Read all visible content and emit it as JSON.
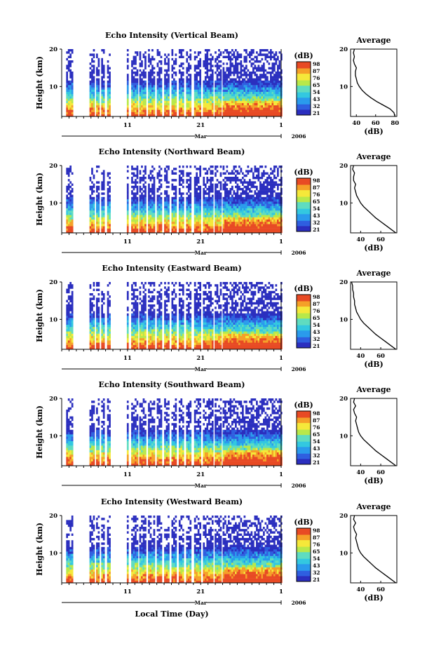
{
  "figure": {
    "xlabel": "Local Time (Day)",
    "month_label": "Mar",
    "year_label": "2006",
    "date_ticks": [
      "11",
      "21",
      "1"
    ],
    "colorbar_unit": "(dB)",
    "colorbar_labels": [
      "98",
      "87",
      "76",
      "65",
      "54",
      "43",
      "32",
      "21"
    ],
    "avg_title": "Average",
    "avg_xlabel": "(dB)"
  },
  "chart_data": [
    {
      "type": "heatmap",
      "title": "Echo Intensity (Vertical Beam)",
      "ylabel": "Height (km)",
      "yticks": [
        10,
        20
      ],
      "ylim": [
        2,
        20
      ],
      "x_ticks": [
        "11",
        "21",
        "1"
      ],
      "x_range": [
        "Mar 2",
        "Apr 1"
      ],
      "color_scale_dB": [
        21,
        32,
        43,
        54,
        65,
        76,
        87,
        98
      ],
      "average_profile": {
        "xticks": [
          40,
          60,
          80
        ],
        "xlim": [
          34,
          82
        ],
        "height_km": [
          2,
          3,
          4,
          5,
          6,
          7,
          8,
          9,
          10,
          11,
          12,
          13,
          14,
          15,
          16,
          17,
          18,
          19,
          20
        ],
        "avg_dB": [
          80,
          79,
          75,
          68,
          61,
          55,
          50,
          46,
          43,
          41,
          40,
          39,
          39,
          40,
          38,
          37,
          38,
          37,
          38
        ]
      }
    },
    {
      "type": "heatmap",
      "title": "Echo Intensity (Northward Beam)",
      "ylabel": "Height (km)",
      "yticks": [
        10,
        20
      ],
      "ylim": [
        2,
        20
      ],
      "x_ticks": [
        "11",
        "21",
        "1"
      ],
      "x_range": [
        "Mar 2",
        "Apr 1"
      ],
      "color_scale_dB": [
        21,
        32,
        43,
        54,
        65,
        76,
        87,
        98
      ],
      "average_profile": {
        "xticks": [
          40,
          60
        ],
        "xlim": [
          30,
          76
        ],
        "height_km": [
          2,
          3,
          4,
          5,
          6,
          7,
          8,
          9,
          10,
          11,
          12,
          13,
          14,
          15,
          16,
          17,
          18,
          19,
          20
        ],
        "avg_dB": [
          75,
          70,
          65,
          60,
          55,
          51,
          47,
          43,
          40,
          38,
          36,
          35,
          34,
          35,
          33,
          33,
          34,
          32,
          33
        ]
      }
    },
    {
      "type": "heatmap",
      "title": "Echo Intensity (Eastward Beam)",
      "ylabel": "Height (km)",
      "yticks": [
        10,
        20
      ],
      "ylim": [
        2,
        20
      ],
      "x_ticks": [
        "11",
        "21",
        "1"
      ],
      "x_range": [
        "Mar 2",
        "Apr 1"
      ],
      "color_scale_dB": [
        21,
        32,
        43,
        54,
        65,
        76,
        87,
        98
      ],
      "average_profile": {
        "xticks": [
          40,
          60
        ],
        "xlim": [
          30,
          76
        ],
        "height_km": [
          2,
          3,
          4,
          5,
          6,
          7,
          8,
          9,
          10,
          11,
          12,
          13,
          14,
          15,
          16,
          17,
          18,
          19,
          20
        ],
        "avg_dB": [
          75,
          70,
          65,
          60,
          55,
          51,
          47,
          43,
          40,
          38,
          36,
          35,
          34,
          34,
          33,
          33,
          32,
          32,
          31
        ]
      }
    },
    {
      "type": "heatmap",
      "title": "Echo Intensity (Southward Beam)",
      "ylabel": "Height (km)",
      "yticks": [
        10,
        20
      ],
      "ylim": [
        2,
        20
      ],
      "x_ticks": [
        "11",
        "21",
        "1"
      ],
      "x_range": [
        "Mar 2",
        "Apr 1"
      ],
      "color_scale_dB": [
        21,
        32,
        43,
        54,
        65,
        76,
        87,
        98
      ],
      "average_profile": {
        "xticks": [
          40,
          60
        ],
        "xlim": [
          30,
          76
        ],
        "height_km": [
          2,
          3,
          4,
          5,
          6,
          7,
          8,
          9,
          10,
          11,
          12,
          13,
          14,
          15,
          16,
          17,
          18,
          19,
          20
        ],
        "avg_dB": [
          75,
          70,
          65,
          60,
          55,
          51,
          47,
          43,
          40,
          38,
          37,
          36,
          35,
          36,
          34,
          33,
          35,
          33,
          34
        ]
      }
    },
    {
      "type": "heatmap",
      "title": "Echo Intensity (Westward Beam)",
      "ylabel": "Height (km)",
      "yticks": [
        10,
        20
      ],
      "ylim": [
        2,
        20
      ],
      "x_ticks": [
        "11",
        "21",
        "1"
      ],
      "x_range": [
        "Mar 2",
        "Apr 1"
      ],
      "color_scale_dB": [
        21,
        32,
        43,
        54,
        65,
        76,
        87,
        98
      ],
      "average_profile": {
        "xticks": [
          40,
          60
        ],
        "xlim": [
          30,
          76
        ],
        "height_km": [
          2,
          3,
          4,
          5,
          6,
          7,
          8,
          9,
          10,
          11,
          12,
          13,
          14,
          15,
          16,
          17,
          18,
          19,
          20
        ],
        "avg_dB": [
          75,
          70,
          65,
          60,
          55,
          51,
          47,
          43,
          40,
          38,
          37,
          36,
          35,
          36,
          34,
          33,
          35,
          33,
          34
        ]
      }
    }
  ],
  "colormap": [
    "#2b2fbf",
    "#2f5fe0",
    "#2a9bec",
    "#33c8e0",
    "#5fdcc0",
    "#b8e84a",
    "#f5e83a",
    "#f5a028",
    "#e84a24"
  ]
}
